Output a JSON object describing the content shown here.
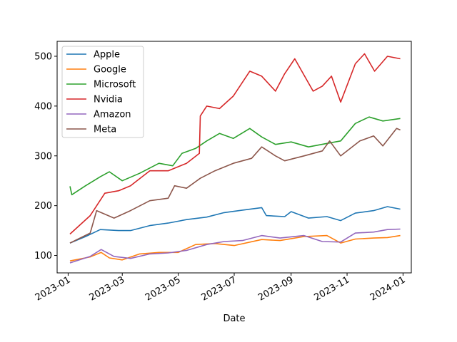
{
  "chart_data": {
    "type": "line",
    "title": "",
    "xlabel": "Date",
    "ylabel": "",
    "xlim": [
      "2022-12-20",
      "2024-01-10"
    ],
    "ylim": [
      65,
      530
    ],
    "grid": false,
    "legend_position": "top-left",
    "x_ticks": [
      "2023-01",
      "2023-03",
      "2023-05",
      "2023-07",
      "2023-09",
      "2023-11",
      "2024-01"
    ],
    "y_ticks": [
      100,
      200,
      300,
      400,
      500
    ],
    "series": [
      {
        "name": "Apple",
        "color": "#1f77b4",
        "points": [
          [
            "2023-01-03",
            125
          ],
          [
            "2023-01-20",
            138
          ],
          [
            "2023-02-05",
            152
          ],
          [
            "2023-02-25",
            150
          ],
          [
            "2023-03-10",
            150
          ],
          [
            "2023-03-31",
            160
          ],
          [
            "2023-04-20",
            165
          ],
          [
            "2023-05-10",
            172
          ],
          [
            "2023-06-01",
            177
          ],
          [
            "2023-06-20",
            186
          ],
          [
            "2023-07-10",
            191
          ],
          [
            "2023-07-31",
            196
          ],
          [
            "2023-08-05",
            180
          ],
          [
            "2023-08-25",
            178
          ],
          [
            "2023-09-01",
            188
          ],
          [
            "2023-09-20",
            175
          ],
          [
            "2023-10-10",
            178
          ],
          [
            "2023-10-25",
            170
          ],
          [
            "2023-11-10",
            185
          ],
          [
            "2023-11-30",
            190
          ],
          [
            "2023-12-15",
            198
          ],
          [
            "2023-12-29",
            193
          ]
        ]
      },
      {
        "name": "Google",
        "color": "#ff7f0e",
        "points": [
          [
            "2023-01-03",
            89
          ],
          [
            "2023-01-25",
            97
          ],
          [
            "2023-02-06",
            106
          ],
          [
            "2023-02-15",
            95
          ],
          [
            "2023-03-01",
            91
          ],
          [
            "2023-03-20",
            103
          ],
          [
            "2023-04-10",
            106
          ],
          [
            "2023-05-01",
            106
          ],
          [
            "2023-05-20",
            122
          ],
          [
            "2023-06-10",
            124
          ],
          [
            "2023-07-01",
            120
          ],
          [
            "2023-07-31",
            132
          ],
          [
            "2023-08-20",
            130
          ],
          [
            "2023-09-15",
            138
          ],
          [
            "2023-10-10",
            140
          ],
          [
            "2023-10-25",
            125
          ],
          [
            "2023-11-10",
            133
          ],
          [
            "2023-11-30",
            135
          ],
          [
            "2023-12-15",
            136
          ],
          [
            "2023-12-29",
            140
          ]
        ]
      },
      {
        "name": "Microsoft",
        "color": "#2ca02c",
        "points": [
          [
            "2023-01-03",
            239
          ],
          [
            "2023-01-05",
            222
          ],
          [
            "2023-01-20",
            240
          ],
          [
            "2023-02-05",
            258
          ],
          [
            "2023-02-15",
            268
          ],
          [
            "2023-03-01",
            250
          ],
          [
            "2023-03-20",
            265
          ],
          [
            "2023-04-10",
            285
          ],
          [
            "2023-04-25",
            280
          ],
          [
            "2023-05-05",
            305
          ],
          [
            "2023-05-20",
            315
          ],
          [
            "2023-06-01",
            330
          ],
          [
            "2023-06-15",
            345
          ],
          [
            "2023-06-30",
            335
          ],
          [
            "2023-07-18",
            355
          ],
          [
            "2023-07-31",
            338
          ],
          [
            "2023-08-15",
            323
          ],
          [
            "2023-09-01",
            328
          ],
          [
            "2023-09-20",
            318
          ],
          [
            "2023-10-10",
            325
          ],
          [
            "2023-10-25",
            330
          ],
          [
            "2023-11-10",
            365
          ],
          [
            "2023-11-25",
            378
          ],
          [
            "2023-12-10",
            370
          ],
          [
            "2023-12-29",
            375
          ]
        ]
      },
      {
        "name": "Nvidia",
        "color": "#d62728",
        "points": [
          [
            "2023-01-03",
            143
          ],
          [
            "2023-01-25",
            180
          ],
          [
            "2023-02-10",
            225
          ],
          [
            "2023-02-25",
            230
          ],
          [
            "2023-03-10",
            240
          ],
          [
            "2023-03-31",
            270
          ],
          [
            "2023-04-20",
            270
          ],
          [
            "2023-05-10",
            285
          ],
          [
            "2023-05-24",
            305
          ],
          [
            "2023-05-25",
            380
          ],
          [
            "2023-06-01",
            400
          ],
          [
            "2023-06-15",
            395
          ],
          [
            "2023-06-30",
            420
          ],
          [
            "2023-07-18",
            470
          ],
          [
            "2023-07-31",
            460
          ],
          [
            "2023-08-15",
            430
          ],
          [
            "2023-08-25",
            465
          ],
          [
            "2023-09-05",
            495
          ],
          [
            "2023-09-25",
            430
          ],
          [
            "2023-10-05",
            440
          ],
          [
            "2023-10-15",
            460
          ],
          [
            "2023-10-25",
            408
          ],
          [
            "2023-11-10",
            485
          ],
          [
            "2023-11-20",
            505
          ],
          [
            "2023-12-01",
            470
          ],
          [
            "2023-12-15",
            500
          ],
          [
            "2023-12-29",
            495
          ]
        ]
      },
      {
        "name": "Amazon",
        "color": "#9467bd",
        "points": [
          [
            "2023-01-03",
            85
          ],
          [
            "2023-01-25",
            98
          ],
          [
            "2023-02-06",
            112
          ],
          [
            "2023-02-20",
            98
          ],
          [
            "2023-03-10",
            94
          ],
          [
            "2023-03-31",
            103
          ],
          [
            "2023-04-20",
            105
          ],
          [
            "2023-05-10",
            110
          ],
          [
            "2023-06-01",
            122
          ],
          [
            "2023-06-20",
            128
          ],
          [
            "2023-07-10",
            130
          ],
          [
            "2023-07-31",
            140
          ],
          [
            "2023-08-20",
            135
          ],
          [
            "2023-09-15",
            140
          ],
          [
            "2023-10-05",
            128
          ],
          [
            "2023-10-25",
            127
          ],
          [
            "2023-11-10",
            145
          ],
          [
            "2023-11-30",
            147
          ],
          [
            "2023-12-15",
            152
          ],
          [
            "2023-12-29",
            153
          ]
        ]
      },
      {
        "name": "Meta",
        "color": "#8c564b",
        "points": [
          [
            "2023-01-03",
            125
          ],
          [
            "2023-01-25",
            145
          ],
          [
            "2023-02-01",
            190
          ],
          [
            "2023-02-20",
            175
          ],
          [
            "2023-03-10",
            190
          ],
          [
            "2023-03-31",
            210
          ],
          [
            "2023-04-20",
            215
          ],
          [
            "2023-04-27",
            240
          ],
          [
            "2023-05-10",
            235
          ],
          [
            "2023-05-25",
            255
          ],
          [
            "2023-06-10",
            270
          ],
          [
            "2023-06-30",
            285
          ],
          [
            "2023-07-20",
            295
          ],
          [
            "2023-07-31",
            318
          ],
          [
            "2023-08-15",
            300
          ],
          [
            "2023-08-25",
            290
          ],
          [
            "2023-09-15",
            300
          ],
          [
            "2023-10-05",
            310
          ],
          [
            "2023-10-13",
            330
          ],
          [
            "2023-10-25",
            300
          ],
          [
            "2023-11-15",
            330
          ],
          [
            "2023-11-30",
            340
          ],
          [
            "2023-12-10",
            320
          ],
          [
            "2023-12-25",
            355
          ],
          [
            "2023-12-29",
            352
          ]
        ]
      }
    ]
  }
}
